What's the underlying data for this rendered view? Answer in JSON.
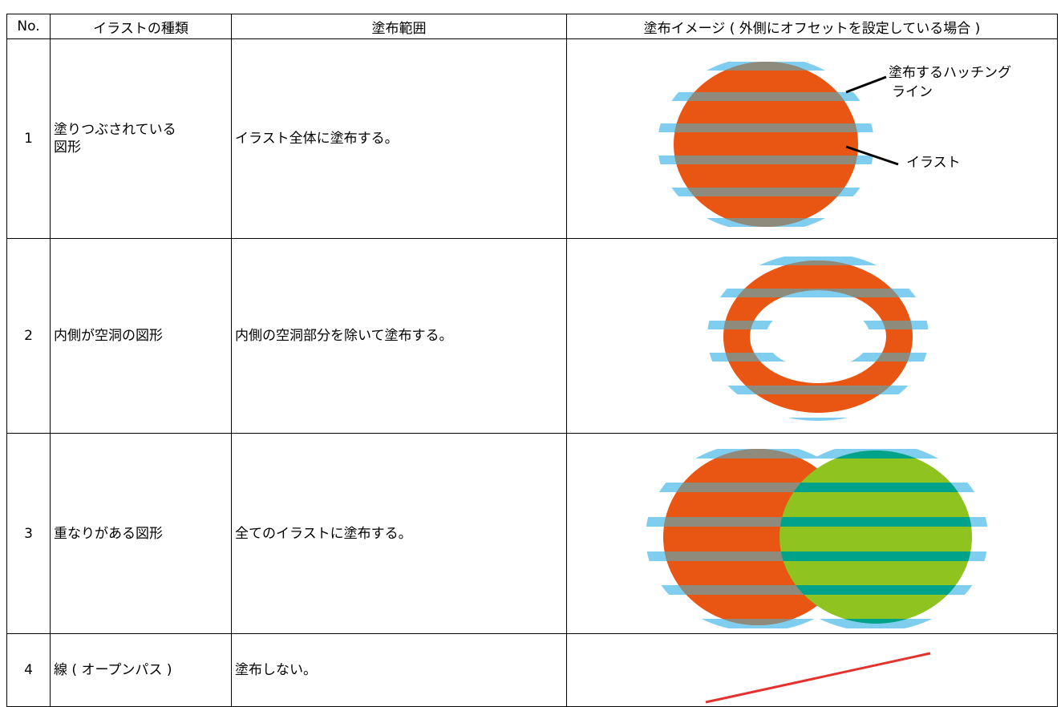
{
  "table": {
    "header": [
      "No.",
      "イラストの種類",
      "塗布範囲",
      "塗布イメージ ( 外側にオフセットを設定している場合 )"
    ],
    "rows": [
      {
        "no": "1",
        "type": [
          "塗りつぶされている",
          "図形"
        ],
        "scope": "イラスト全体に塗布する。"
      },
      {
        "no": "2",
        "type": [
          "内側が空洞の図形"
        ],
        "scope": "内側の空洞部分を除いて塗布する。"
      },
      {
        "no": "3",
        "type": [
          "重なりがある図形"
        ],
        "scope": "全てのイラストに塗布する。"
      },
      {
        "no": "4",
        "type": [
          "線 ( オープンパス )"
        ],
        "scope": "塗布しない。"
      }
    ]
  },
  "annotations": {
    "hatch_line": [
      "塗布するハッチング",
      "ライン"
    ],
    "illust": "イラスト"
  }
}
